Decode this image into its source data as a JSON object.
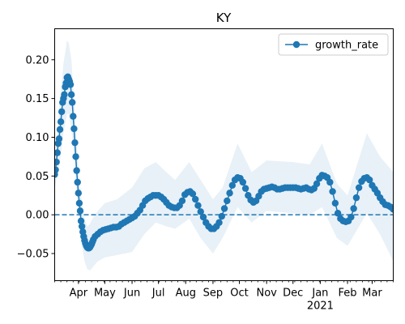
{
  "chart_data": {
    "type": "line",
    "title": "KY",
    "xlabel": "",
    "ylabel": "",
    "x_range": [
      "2020-03-05",
      "2021-03-25"
    ],
    "ylim": [
      -0.085,
      0.24
    ],
    "y_ticks": [
      -0.05,
      0.0,
      0.05,
      0.1,
      0.15,
      0.2
    ],
    "y_tick_labels": [
      "−0.05",
      "0.00",
      "0.05",
      "0.10",
      "0.15",
      "0.20"
    ],
    "x_ticks": [
      {
        "date": "2020-04-01",
        "label": "Apr",
        "sublabel": ""
      },
      {
        "date": "2020-05-01",
        "label": "May",
        "sublabel": ""
      },
      {
        "date": "2020-06-01",
        "label": "Jun",
        "sublabel": ""
      },
      {
        "date": "2020-07-01",
        "label": "Jul",
        "sublabel": ""
      },
      {
        "date": "2020-08-01",
        "label": "Aug",
        "sublabel": ""
      },
      {
        "date": "2020-09-01",
        "label": "Sep",
        "sublabel": ""
      },
      {
        "date": "2020-10-01",
        "label": "Oct",
        "sublabel": ""
      },
      {
        "date": "2020-11-01",
        "label": "Nov",
        "sublabel": ""
      },
      {
        "date": "2020-12-01",
        "label": "Dec",
        "sublabel": ""
      },
      {
        "date": "2021-01-01",
        "label": "Jan",
        "sublabel": "2021"
      },
      {
        "date": "2021-02-01",
        "label": "Feb",
        "sublabel": ""
      },
      {
        "date": "2021-03-01",
        "label": "Mar",
        "sublabel": ""
      }
    ],
    "reference_line": {
      "y": 0.0,
      "style": "dashed"
    },
    "legend": {
      "entries": [
        "growth_rate"
      ],
      "placement": "top-right"
    },
    "grid": false,
    "colors": {
      "series": "#1f77b4",
      "band": "#1f77b4",
      "band_opacity": 0.1
    },
    "series": [
      {
        "name": "growth_rate",
        "points": [
          [
            "2020-03-05",
            0.052
          ],
          [
            "2020-03-06",
            0.058
          ],
          [
            "2020-03-07",
            0.068
          ],
          [
            "2020-03-08",
            0.08
          ],
          [
            "2020-03-09",
            0.092
          ],
          [
            "2020-03-10",
            0.098
          ],
          [
            "2020-03-11",
            0.11
          ],
          [
            "2020-03-12",
            0.12
          ],
          [
            "2020-03-13",
            0.133
          ],
          [
            "2020-03-14",
            0.145
          ],
          [
            "2020-03-15",
            0.15
          ],
          [
            "2020-03-16",
            0.155
          ],
          [
            "2020-03-17",
            0.165
          ],
          [
            "2020-03-18",
            0.17
          ],
          [
            "2020-03-19",
            0.177
          ],
          [
            "2020-03-20",
            0.178
          ],
          [
            "2020-03-21",
            0.175
          ],
          [
            "2020-03-22",
            0.172
          ],
          [
            "2020-03-23",
            0.168
          ],
          [
            "2020-03-24",
            0.155
          ],
          [
            "2020-03-25",
            0.145
          ],
          [
            "2020-03-26",
            0.127
          ],
          [
            "2020-03-27",
            0.111
          ],
          [
            "2020-03-28",
            0.093
          ],
          [
            "2020-03-29",
            0.075
          ],
          [
            "2020-03-30",
            0.057
          ],
          [
            "2020-03-31",
            0.042
          ],
          [
            "2020-04-01",
            0.028
          ],
          [
            "2020-04-02",
            0.015
          ],
          [
            "2020-04-03",
            0.005
          ],
          [
            "2020-04-04",
            -0.008
          ],
          [
            "2020-04-05",
            -0.015
          ],
          [
            "2020-04-06",
            -0.022
          ],
          [
            "2020-04-07",
            -0.028
          ],
          [
            "2020-04-08",
            -0.033
          ],
          [
            "2020-04-09",
            -0.037
          ],
          [
            "2020-04-10",
            -0.04
          ],
          [
            "2020-04-11",
            -0.042
          ],
          [
            "2020-04-12",
            -0.043
          ],
          [
            "2020-04-13",
            -0.043
          ],
          [
            "2020-04-14",
            -0.042
          ],
          [
            "2020-04-15",
            -0.04
          ],
          [
            "2020-04-16",
            -0.038
          ],
          [
            "2020-04-17",
            -0.035
          ],
          [
            "2020-04-18",
            -0.032
          ],
          [
            "2020-04-20",
            -0.028
          ],
          [
            "2020-04-23",
            -0.025
          ],
          [
            "2020-04-26",
            -0.022
          ],
          [
            "2020-04-29",
            -0.02
          ],
          [
            "2020-05-02",
            -0.019
          ],
          [
            "2020-05-05",
            -0.018
          ],
          [
            "2020-05-08",
            -0.017
          ],
          [
            "2020-05-11",
            -0.016
          ],
          [
            "2020-05-14",
            -0.016
          ],
          [
            "2020-05-17",
            -0.015
          ],
          [
            "2020-05-20",
            -0.012
          ],
          [
            "2020-05-23",
            -0.01
          ],
          [
            "2020-05-26",
            -0.008
          ],
          [
            "2020-05-29",
            -0.006
          ],
          [
            "2020-06-01",
            -0.004
          ],
          [
            "2020-06-04",
            -0.002
          ],
          [
            "2020-06-07",
            0.002
          ],
          [
            "2020-06-10",
            0.006
          ],
          [
            "2020-06-13",
            0.012
          ],
          [
            "2020-06-16",
            0.018
          ],
          [
            "2020-06-19",
            0.021
          ],
          [
            "2020-06-22",
            0.023
          ],
          [
            "2020-06-25",
            0.025
          ],
          [
            "2020-06-28",
            0.025
          ],
          [
            "2020-07-01",
            0.025
          ],
          [
            "2020-07-04",
            0.023
          ],
          [
            "2020-07-07",
            0.02
          ],
          [
            "2020-07-10",
            0.016
          ],
          [
            "2020-07-13",
            0.012
          ],
          [
            "2020-07-16",
            0.01
          ],
          [
            "2020-07-19",
            0.009
          ],
          [
            "2020-07-22",
            0.009
          ],
          [
            "2020-07-25",
            0.012
          ],
          [
            "2020-07-28",
            0.018
          ],
          [
            "2020-07-31",
            0.026
          ],
          [
            "2020-08-03",
            0.029
          ],
          [
            "2020-08-06",
            0.03
          ],
          [
            "2020-08-09",
            0.027
          ],
          [
            "2020-08-12",
            0.02
          ],
          [
            "2020-08-15",
            0.012
          ],
          [
            "2020-08-18",
            0.004
          ],
          [
            "2020-08-21",
            -0.003
          ],
          [
            "2020-08-24",
            -0.01
          ],
          [
            "2020-08-27",
            -0.015
          ],
          [
            "2020-08-30",
            -0.018
          ],
          [
            "2020-09-02",
            -0.018
          ],
          [
            "2020-09-05",
            -0.015
          ],
          [
            "2020-09-08",
            -0.01
          ],
          [
            "2020-09-11",
            -0.002
          ],
          [
            "2020-09-14",
            0.008
          ],
          [
            "2020-09-17",
            0.018
          ],
          [
            "2020-09-20",
            0.028
          ],
          [
            "2020-09-23",
            0.038
          ],
          [
            "2020-09-26",
            0.045
          ],
          [
            "2020-09-29",
            0.048
          ],
          [
            "2020-10-02",
            0.047
          ],
          [
            "2020-10-05",
            0.042
          ],
          [
            "2020-10-08",
            0.034
          ],
          [
            "2020-10-11",
            0.025
          ],
          [
            "2020-10-14",
            0.019
          ],
          [
            "2020-10-17",
            0.016
          ],
          [
            "2020-10-20",
            0.018
          ],
          [
            "2020-10-23",
            0.024
          ],
          [
            "2020-10-26",
            0.03
          ],
          [
            "2020-10-29",
            0.033
          ],
          [
            "2020-11-01",
            0.034
          ],
          [
            "2020-11-04",
            0.035
          ],
          [
            "2020-11-07",
            0.036
          ],
          [
            "2020-11-10",
            0.035
          ],
          [
            "2020-11-13",
            0.033
          ],
          [
            "2020-11-16",
            0.033
          ],
          [
            "2020-11-19",
            0.034
          ],
          [
            "2020-11-22",
            0.035
          ],
          [
            "2020-11-25",
            0.035
          ],
          [
            "2020-11-28",
            0.035
          ],
          [
            "2020-12-01",
            0.035
          ],
          [
            "2020-12-04",
            0.035
          ],
          [
            "2020-12-07",
            0.034
          ],
          [
            "2020-12-10",
            0.033
          ],
          [
            "2020-12-13",
            0.034
          ],
          [
            "2020-12-16",
            0.035
          ],
          [
            "2020-12-19",
            0.033
          ],
          [
            "2020-12-22",
            0.032
          ],
          [
            "2020-12-25",
            0.034
          ],
          [
            "2020-12-28",
            0.04
          ],
          [
            "2020-12-31",
            0.047
          ],
          [
            "2021-01-03",
            0.051
          ],
          [
            "2021-01-06",
            0.05
          ],
          [
            "2021-01-09",
            0.048
          ],
          [
            "2021-01-12",
            0.042
          ],
          [
            "2021-01-15",
            0.03
          ],
          [
            "2021-01-18",
            0.015
          ],
          [
            "2021-01-21",
            0.002
          ],
          [
            "2021-01-24",
            -0.005
          ],
          [
            "2021-01-27",
            -0.008
          ],
          [
            "2021-01-30",
            -0.009
          ],
          [
            "2021-02-02",
            -0.008
          ],
          [
            "2021-02-05",
            -0.003
          ],
          [
            "2021-02-08",
            0.008
          ],
          [
            "2021-02-11",
            0.022
          ],
          [
            "2021-02-14",
            0.035
          ],
          [
            "2021-02-17",
            0.043
          ],
          [
            "2021-02-20",
            0.047
          ],
          [
            "2021-02-23",
            0.048
          ],
          [
            "2021-02-26",
            0.045
          ],
          [
            "2021-03-01",
            0.038
          ],
          [
            "2021-03-04",
            0.033
          ],
          [
            "2021-03-07",
            0.028
          ],
          [
            "2021-03-10",
            0.022
          ],
          [
            "2021-03-13",
            0.017
          ],
          [
            "2021-03-16",
            0.013
          ],
          [
            "2021-03-19",
            0.012
          ],
          [
            "2021-03-22",
            0.01
          ],
          [
            "2021-03-25",
            0.007
          ]
        ],
        "band": [
          [
            "2020-03-05",
            0.035,
            0.065
          ],
          [
            "2020-03-10",
            0.06,
            0.135
          ],
          [
            "2020-03-15",
            0.105,
            0.195
          ],
          [
            "2020-03-19",
            0.13,
            0.225
          ],
          [
            "2020-03-21",
            0.13,
            0.222
          ],
          [
            "2020-03-24",
            0.11,
            0.2
          ],
          [
            "2020-03-27",
            0.075,
            0.15
          ],
          [
            "2020-03-30",
            0.03,
            0.095
          ],
          [
            "2020-04-02",
            -0.01,
            0.045
          ],
          [
            "2020-04-05",
            -0.04,
            0.015
          ],
          [
            "2020-04-08",
            -0.06,
            -0.005
          ],
          [
            "2020-04-11",
            -0.07,
            -0.015
          ],
          [
            "2020-04-14",
            -0.072,
            -0.012
          ],
          [
            "2020-04-17",
            -0.068,
            -0.005
          ],
          [
            "2020-04-23",
            -0.06,
            0.005
          ],
          [
            "2020-05-01",
            -0.055,
            0.015
          ],
          [
            "2020-05-15",
            -0.052,
            0.02
          ],
          [
            "2020-06-01",
            -0.048,
            0.035
          ],
          [
            "2020-06-15",
            -0.025,
            0.06
          ],
          [
            "2020-06-28",
            -0.01,
            0.068
          ],
          [
            "2020-07-10",
            -0.015,
            0.055
          ],
          [
            "2020-07-20",
            -0.018,
            0.045
          ],
          [
            "2020-08-05",
            -0.005,
            0.068
          ],
          [
            "2020-08-18",
            -0.03,
            0.045
          ],
          [
            "2020-09-01",
            -0.05,
            0.02
          ],
          [
            "2020-09-12",
            -0.03,
            0.035
          ],
          [
            "2020-09-29",
            0.01,
            0.092
          ],
          [
            "2020-10-15",
            -0.01,
            0.055
          ],
          [
            "2020-11-01",
            0.005,
            0.07
          ],
          [
            "2020-12-01",
            0.002,
            0.068
          ],
          [
            "2020-12-20",
            0.0,
            0.065
          ],
          [
            "2021-01-03",
            0.01,
            0.092
          ],
          [
            "2021-01-20",
            -0.03,
            0.04
          ],
          [
            "2021-02-01",
            -0.04,
            0.025
          ],
          [
            "2021-02-23",
            0.002,
            0.105
          ],
          [
            "2021-03-10",
            -0.025,
            0.075
          ],
          [
            "2021-03-25",
            -0.06,
            0.055
          ]
        ]
      }
    ]
  }
}
